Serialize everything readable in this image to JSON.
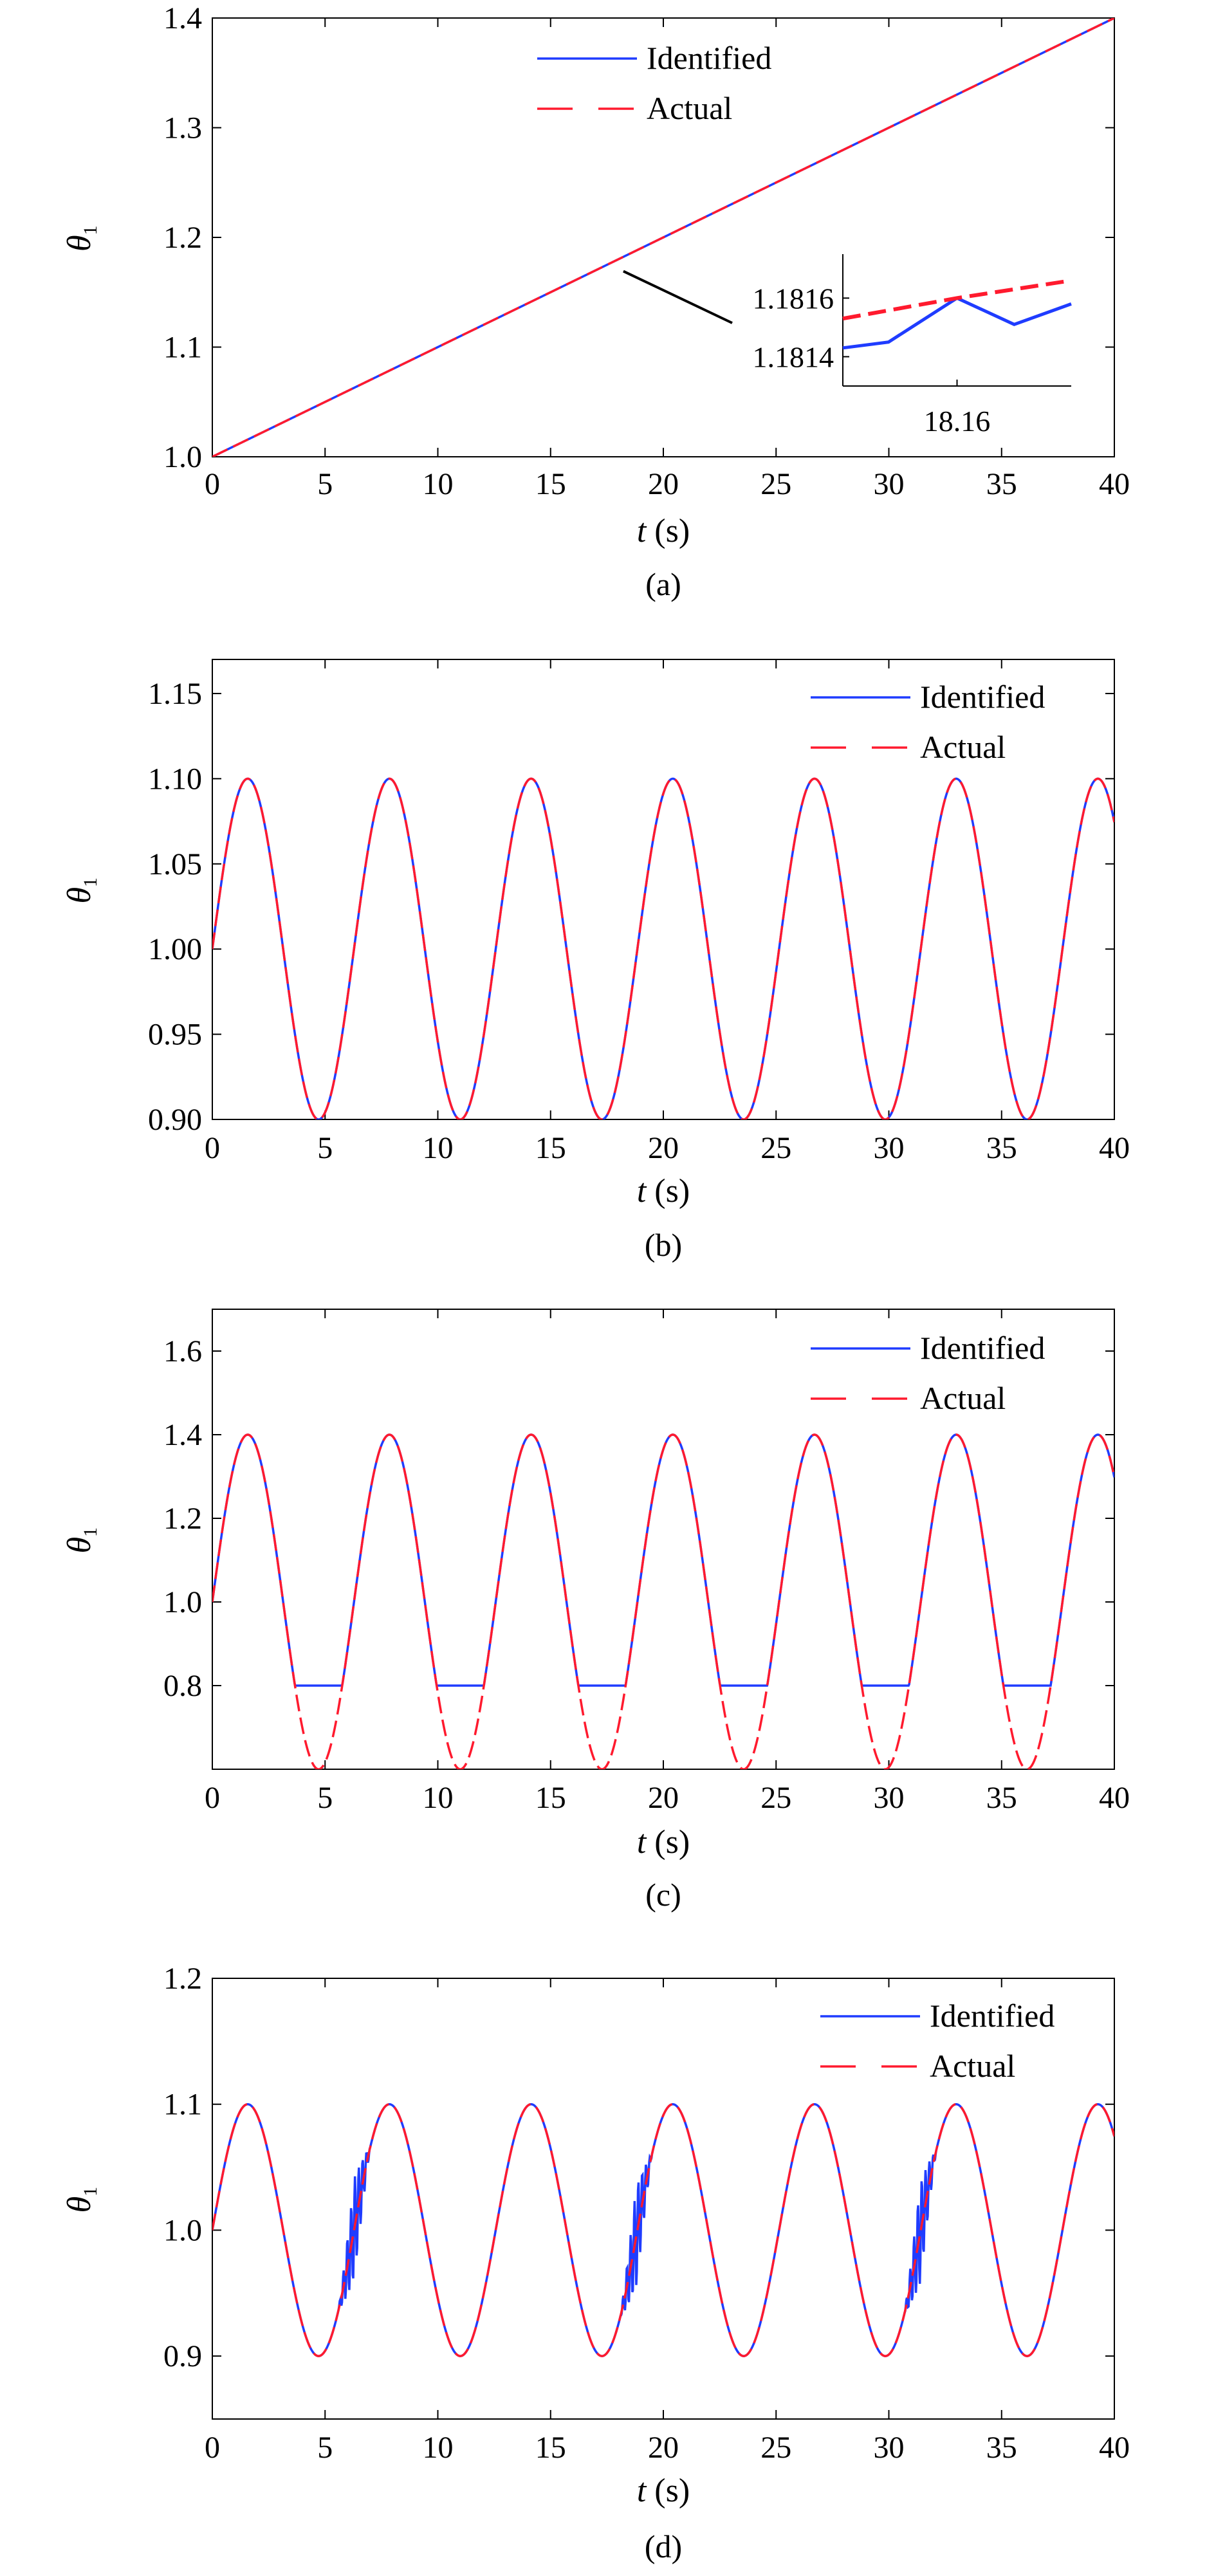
{
  "figure": {
    "colors": {
      "identified": "#1f3cff",
      "actual": "#ff1a2e",
      "axis": "#000000"
    }
  },
  "chart_data": [
    {
      "type": "line",
      "panel_label": "(a)",
      "xlabel_var": "t",
      "xlabel_unit": " (s)",
      "ylabel_var": "θ",
      "ylabel_sub": "1",
      "xlim": [
        0,
        40
      ],
      "ylim": [
        1.0,
        1.4
      ],
      "xticks": [
        0,
        5,
        10,
        15,
        20,
        25,
        30,
        35,
        40
      ],
      "xtick_labels": [
        "0",
        "5",
        "10",
        "15",
        "20",
        "25",
        "30",
        "35",
        "40"
      ],
      "yticks": [
        1.0,
        1.1,
        1.2,
        1.3,
        1.4
      ],
      "ytick_labels": [
        "1.0",
        "1.1",
        "1.2",
        "1.3",
        "1.4"
      ],
      "legend_position": "top-center",
      "legend": [
        "Identified",
        "Actual"
      ],
      "series": [
        {
          "name": "Identified",
          "style": "solid",
          "function": "ramp",
          "params": {
            "start": 1.0,
            "slope": 0.01
          }
        },
        {
          "name": "Actual",
          "style": "dashed",
          "function": "ramp",
          "params": {
            "start": 1.0,
            "slope": 0.01
          }
        }
      ],
      "inset": {
        "yticks": [
          1.1814,
          1.1816
        ],
        "ytick_labels": [
          "1.1814",
          "1.1816"
        ],
        "xticks": [
          18.16
        ],
        "xtick_labels": [
          "18.16"
        ],
        "xlim": [
          18.14,
          18.18
        ],
        "ylim": [
          1.1813,
          1.18175
        ],
        "identified": {
          "x": [
            18.14,
            18.148,
            18.16,
            18.17,
            18.18
          ],
          "y": [
            1.18143,
            1.18145,
            1.1816,
            1.18151,
            1.18158
          ]
        },
        "actual": {
          "x": [
            18.14,
            18.16,
            18.18
          ],
          "y": [
            1.18153,
            1.1816,
            1.18166
          ]
        },
        "pointer_target": {
          "x": 17.8,
          "y": 1.178
        }
      }
    },
    {
      "type": "line",
      "panel_label": "(b)",
      "xlabel_var": "t",
      "xlabel_unit": " (s)",
      "ylabel_var": "θ",
      "ylabel_sub": "1",
      "xlim": [
        0,
        40
      ],
      "ylim": [
        0.9,
        1.17
      ],
      "xticks": [
        0,
        5,
        10,
        15,
        20,
        25,
        30,
        35,
        40
      ],
      "xtick_labels": [
        "0",
        "5",
        "10",
        "15",
        "20",
        "25",
        "30",
        "35",
        "40"
      ],
      "yticks": [
        0.9,
        0.95,
        1.0,
        1.05,
        1.1,
        1.15
      ],
      "ytick_labels": [
        "0.90",
        "0.95",
        "1.00",
        "1.05",
        "1.10",
        "1.15"
      ],
      "legend_position": "top-right",
      "legend": [
        "Identified",
        "Actual"
      ],
      "series": [
        {
          "name": "Identified",
          "style": "solid",
          "function": "sine",
          "params": {
            "offset": 1.0,
            "amplitude": 0.1,
            "omega": 1.0,
            "clip_min": 0.9
          }
        },
        {
          "name": "Actual",
          "style": "dashed",
          "function": "sine",
          "params": {
            "offset": 1.0,
            "amplitude": 0.1,
            "omega": 1.0
          }
        }
      ]
    },
    {
      "type": "line",
      "panel_label": "(c)",
      "xlabel_var": "t",
      "xlabel_unit": " (s)",
      "ylabel_var": "θ",
      "ylabel_sub": "1",
      "xlim": [
        0,
        40
      ],
      "ylim": [
        0.6,
        1.7
      ],
      "xticks": [
        0,
        5,
        10,
        15,
        20,
        25,
        30,
        35,
        40
      ],
      "xtick_labels": [
        "0",
        "5",
        "10",
        "15",
        "20",
        "25",
        "30",
        "35",
        "40"
      ],
      "yticks": [
        0.8,
        1.0,
        1.2,
        1.4,
        1.6
      ],
      "ytick_labels": [
        "0.8",
        "1.0",
        "1.2",
        "1.4",
        "1.6"
      ],
      "legend_position": "top-right",
      "legend": [
        "Identified",
        "Actual"
      ],
      "series": [
        {
          "name": "Identified",
          "style": "solid",
          "function": "sine",
          "params": {
            "offset": 1.0,
            "amplitude": 0.4,
            "omega": 1.0,
            "clip_min": 0.8
          }
        },
        {
          "name": "Actual",
          "style": "dashed",
          "function": "sine",
          "params": {
            "offset": 1.0,
            "amplitude": 0.4,
            "omega": 1.0
          }
        }
      ]
    },
    {
      "type": "line",
      "panel_label": "(d)",
      "xlabel_var": "t",
      "xlabel_unit": " (s)",
      "ylabel_var": "θ",
      "ylabel_sub": "1",
      "xlim": [
        0,
        40
      ],
      "ylim": [
        0.85,
        1.2
      ],
      "xticks": [
        0,
        5,
        10,
        15,
        20,
        25,
        30,
        35,
        40
      ],
      "xtick_labels": [
        "0",
        "5",
        "10",
        "15",
        "20",
        "25",
        "30",
        "35",
        "40"
      ],
      "yticks": [
        0.9,
        1.0,
        1.1,
        1.2
      ],
      "ytick_labels": [
        "0.9",
        "1.0",
        "1.1",
        "1.2"
      ],
      "legend_position": "top-right",
      "legend": [
        "Identified",
        "Actual"
      ],
      "series": [
        {
          "name": "Identified",
          "style": "solid",
          "function": "sine_noisy",
          "params": {
            "offset": 1.0,
            "amplitude": 0.1,
            "omega": 1.0,
            "noise_centers": [
              6.3,
              18.8,
              31.4
            ],
            "noise_amplitude": 0.04
          }
        },
        {
          "name": "Actual",
          "style": "dashed",
          "function": "sine",
          "params": {
            "offset": 1.0,
            "amplitude": 0.1,
            "omega": 1.0
          }
        }
      ]
    }
  ]
}
